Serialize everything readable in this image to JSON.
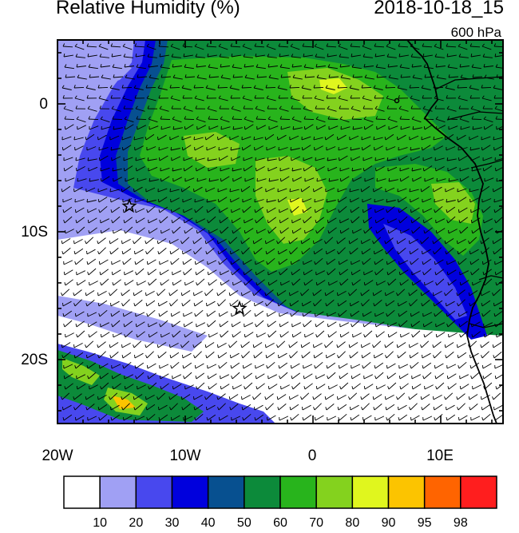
{
  "header": {
    "title": "Relative Humidity (%)",
    "datetime": "2018-10-18_15",
    "level": "600 hPa"
  },
  "axes": {
    "lat_ticks": [
      "0",
      "10S",
      "20S"
    ],
    "lon_ticks": [
      "20W",
      "10W",
      "0",
      "10E"
    ]
  },
  "colorbar": {
    "labels": [
      "10",
      "20",
      "30",
      "40",
      "50",
      "60",
      "70",
      "80",
      "90",
      "95",
      "98"
    ],
    "colors": [
      "#ffffff",
      "#a0a0f4",
      "#4848ee",
      "#0000dd",
      "#075090",
      "#0c8a3a",
      "#28b41c",
      "#84d21e",
      "#e0f61e",
      "#fcc400",
      "#ff6400",
      "#ff1e1e"
    ]
  }
}
